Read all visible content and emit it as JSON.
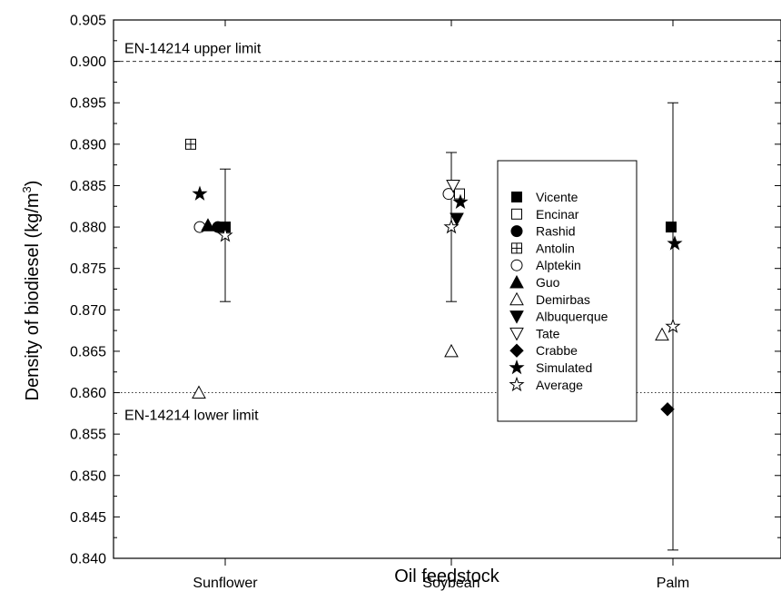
{
  "chart_data": {
    "type": "scatter",
    "title": "",
    "xlabel": "Oil feedstock",
    "ylabel_main": "Density of biodiesel (kg/m",
    "ylabel_sup": "3",
    "ylabel_close": ")",
    "categories": [
      "Sunflower",
      "Soybean",
      "Palm"
    ],
    "ylim": [
      0.84,
      0.905
    ],
    "yticks": [
      "0.840",
      "0.845",
      "0.850",
      "0.855",
      "0.860",
      "0.865",
      "0.870",
      "0.875",
      "0.880",
      "0.885",
      "0.890",
      "0.895",
      "0.900",
      "0.905"
    ],
    "reference_lines": [
      {
        "label": "EN-14214 upper limit",
        "y": 0.9,
        "style": "dashed"
      },
      {
        "label": "EN-14214 lower limit",
        "y": 0.86,
        "style": "dotted"
      }
    ],
    "legend_position": "center-right",
    "series": [
      {
        "name": "Vicente",
        "marker": "square-filled",
        "points": [
          {
            "x": "Sunflower",
            "y": 0.88
          },
          {
            "x": "Palm",
            "y": 0.88
          }
        ]
      },
      {
        "name": "Encinar",
        "marker": "square-open",
        "points": [
          {
            "x": "Soybean",
            "y": 0.884
          }
        ]
      },
      {
        "name": "Rashid",
        "marker": "circle-filled",
        "points": [
          {
            "x": "Sunflower",
            "y": 0.88
          }
        ]
      },
      {
        "name": "Antolin",
        "marker": "square-plus",
        "points": [
          {
            "x": "Sunflower",
            "y": 0.89
          }
        ]
      },
      {
        "name": "Alptekin",
        "marker": "circle-open",
        "points": [
          {
            "x": "Sunflower",
            "y": 0.88
          },
          {
            "x": "Soybean",
            "y": 0.884
          }
        ]
      },
      {
        "name": "Guo",
        "marker": "triangle-up-filled",
        "points": [
          {
            "x": "Sunflower",
            "y": 0.8802
          }
        ]
      },
      {
        "name": "Demirbas",
        "marker": "triangle-up-open",
        "points": [
          {
            "x": "Sunflower",
            "y": 0.86
          },
          {
            "x": "Soybean",
            "y": 0.865
          },
          {
            "x": "Palm",
            "y": 0.867
          }
        ]
      },
      {
        "name": "Albuquerque",
        "marker": "triangle-down-filled",
        "points": [
          {
            "x": "Soybean",
            "y": 0.881
          }
        ]
      },
      {
        "name": "Tate",
        "marker": "triangle-down-open",
        "points": [
          {
            "x": "Soybean",
            "y": 0.885
          }
        ]
      },
      {
        "name": "Crabbe",
        "marker": "diamond-filled",
        "points": [
          {
            "x": "Palm",
            "y": 0.858
          }
        ]
      },
      {
        "name": "Simulated",
        "marker": "star-filled",
        "points": [
          {
            "x": "Sunflower",
            "y": 0.884
          },
          {
            "x": "Soybean",
            "y": 0.883
          },
          {
            "x": "Palm",
            "y": 0.878
          }
        ]
      },
      {
        "name": "Average",
        "marker": "star-open",
        "points": [
          {
            "x": "Sunflower",
            "y": 0.879
          },
          {
            "x": "Soybean",
            "y": 0.88
          },
          {
            "x": "Palm",
            "y": 0.868
          }
        ]
      }
    ],
    "error_bars": [
      {
        "x": "Sunflower",
        "low": 0.871,
        "high": 0.887
      },
      {
        "x": "Soybean",
        "low": 0.871,
        "high": 0.889
      },
      {
        "x": "Palm",
        "low": 0.841,
        "high": 0.895
      }
    ]
  }
}
